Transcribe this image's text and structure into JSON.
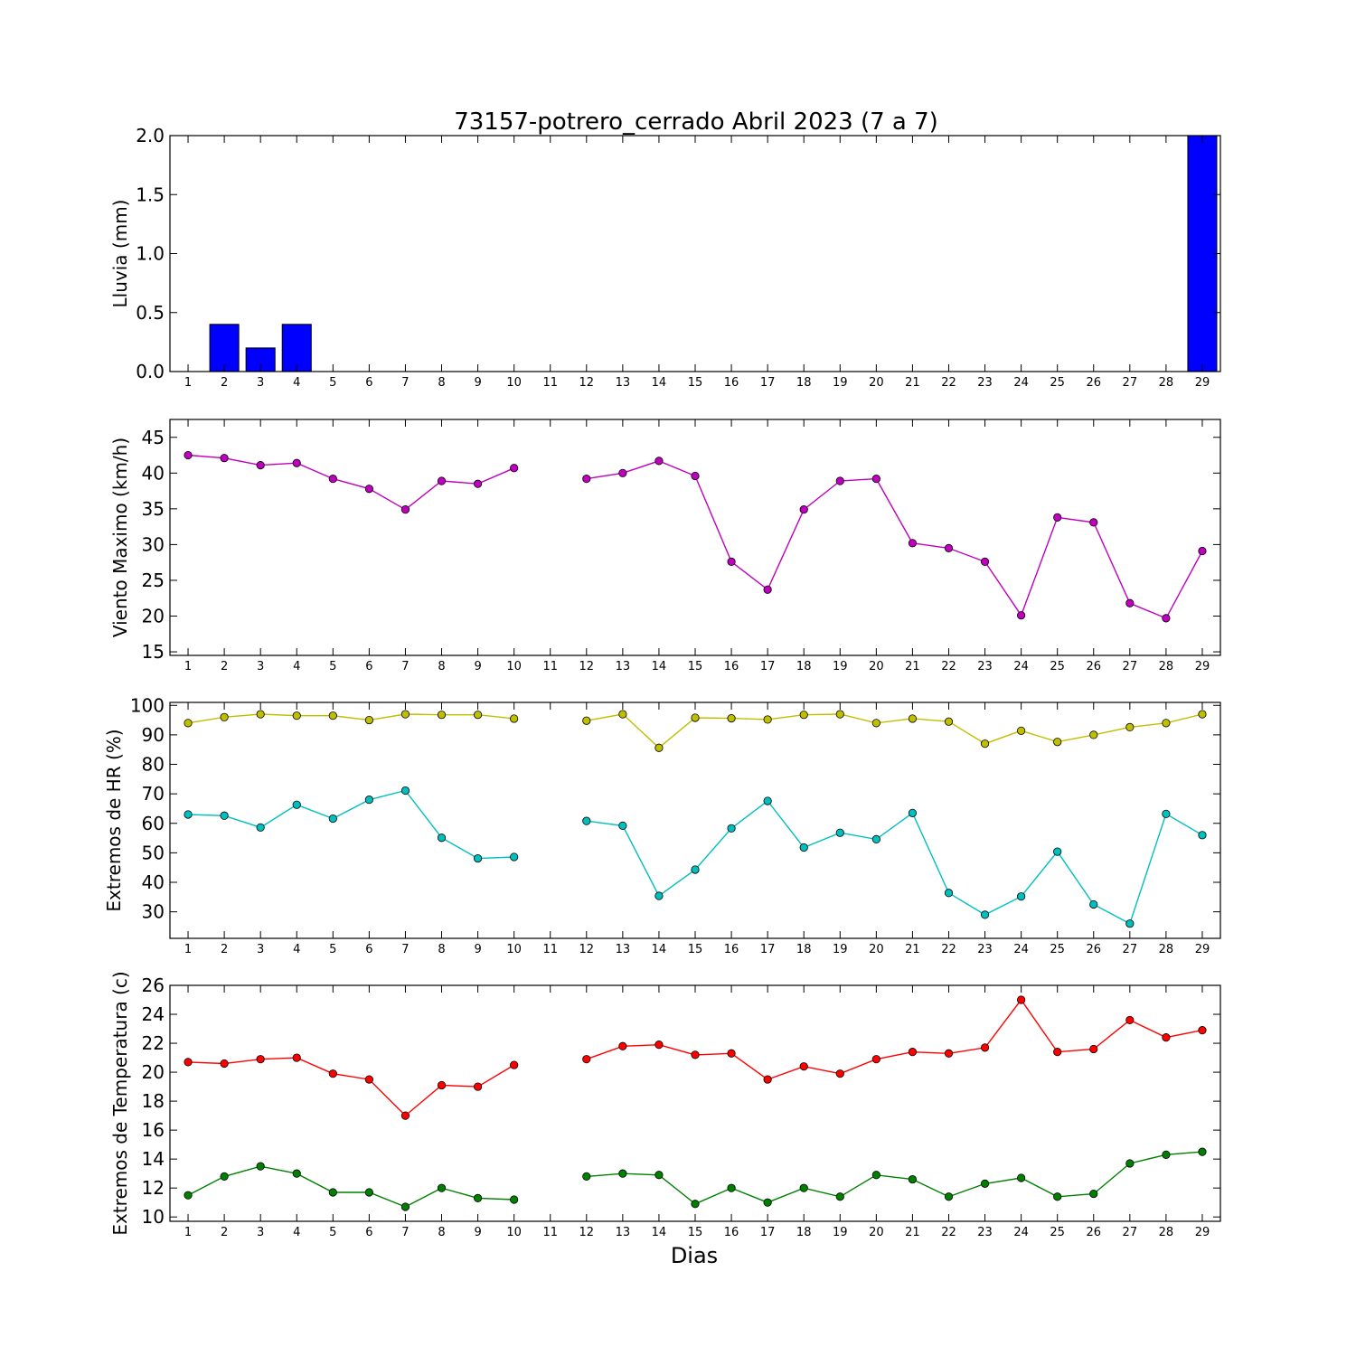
{
  "title": "73157-potrero_cerrado Abril 2023  (7 a 7)",
  "xlabel": "Dias",
  "chart_data": [
    {
      "type": "bar",
      "ylabel": "Lluvia (mm)",
      "ylim": [
        0,
        2.0
      ],
      "yticks": [
        0.0,
        0.5,
        1.0,
        1.5,
        2.0
      ],
      "ytick_format": "1",
      "x": [
        1,
        2,
        3,
        4,
        5,
        6,
        7,
        8,
        9,
        10,
        11,
        12,
        13,
        14,
        15,
        16,
        17,
        18,
        19,
        20,
        21,
        22,
        23,
        24,
        25,
        26,
        27,
        28,
        29
      ],
      "series": [
        {
          "color": "#0000ff",
          "values": [
            0,
            0.4,
            0.2,
            0.4,
            0,
            0,
            0,
            0,
            0,
            0,
            0,
            0,
            0,
            0,
            0,
            0,
            0,
            0,
            0,
            0,
            0,
            0,
            0,
            0,
            0,
            0,
            0,
            0,
            2.0
          ]
        }
      ]
    },
    {
      "type": "line",
      "ylabel": "Viento Maximo (km/h)",
      "ylim": [
        14.5,
        47.5
      ],
      "yticks": [
        15,
        20,
        25,
        30,
        35,
        40,
        45
      ],
      "ytick_format": "0",
      "x": [
        1,
        2,
        3,
        4,
        5,
        6,
        7,
        8,
        9,
        10,
        11,
        12,
        13,
        14,
        15,
        16,
        17,
        18,
        19,
        20,
        21,
        22,
        23,
        24,
        25,
        26,
        27,
        28,
        29
      ],
      "series": [
        {
          "color": "#bf00bf",
          "values": [
            42.5,
            42.1,
            41.1,
            41.4,
            39.2,
            37.8,
            34.9,
            38.9,
            38.5,
            40.7,
            null,
            39.2,
            40.0,
            41.7,
            39.6,
            27.6,
            23.7,
            34.9,
            38.9,
            39.2,
            30.2,
            29.5,
            27.6,
            20.1,
            33.8,
            33.1,
            21.8,
            19.7,
            29.1
          ]
        }
      ]
    },
    {
      "type": "line",
      "ylabel": "Extremos de HR (%)",
      "ylim": [
        21,
        101
      ],
      "yticks": [
        30,
        40,
        50,
        60,
        70,
        80,
        90,
        100
      ],
      "ytick_format": "0",
      "x": [
        1,
        2,
        3,
        4,
        5,
        6,
        7,
        8,
        9,
        10,
        11,
        12,
        13,
        14,
        15,
        16,
        17,
        18,
        19,
        20,
        21,
        22,
        23,
        24,
        25,
        26,
        27,
        28,
        29
      ],
      "series": [
        {
          "color": "#bfbf00",
          "values": [
            94,
            96,
            97,
            96.5,
            96.5,
            95,
            97,
            96.8,
            96.8,
            95.5,
            null,
            94.8,
            97,
            85.6,
            95.8,
            95.6,
            95.2,
            96.8,
            97,
            94,
            95.5,
            94.5,
            87,
            91.4,
            87.6,
            90,
            92.6,
            94,
            97
          ]
        },
        {
          "color": "#00bfbf",
          "values": [
            63,
            62.6,
            58.6,
            66.3,
            61.6,
            68,
            71.1,
            55.1,
            48.1,
            48.6,
            null,
            60.8,
            59.2,
            35.4,
            44.3,
            58.3,
            67.6,
            51.8,
            56.8,
            54.6,
            63.5,
            36.4,
            29,
            35.2,
            50.4,
            32.5,
            26,
            63.2,
            56
          ]
        }
      ]
    },
    {
      "type": "line",
      "ylabel": "Extremos de Temperatura (c)",
      "ylim": [
        9.7,
        26
      ],
      "yticks": [
        10,
        12,
        14,
        16,
        18,
        20,
        22,
        24,
        26
      ],
      "ytick_format": "0",
      "x": [
        1,
        2,
        3,
        4,
        5,
        6,
        7,
        8,
        9,
        10,
        11,
        12,
        13,
        14,
        15,
        16,
        17,
        18,
        19,
        20,
        21,
        22,
        23,
        24,
        25,
        26,
        27,
        28,
        29
      ],
      "series": [
        {
          "color": "#ff0000",
          "values": [
            20.7,
            20.6,
            20.9,
            21,
            19.9,
            19.5,
            17,
            19.1,
            19,
            20.5,
            null,
            20.9,
            21.8,
            21.9,
            21.2,
            21.3,
            19.5,
            20.4,
            19.9,
            20.9,
            21.4,
            21.3,
            21.7,
            25,
            21.4,
            21.6,
            23.6,
            22.4,
            22.9
          ]
        },
        {
          "color": "#008000",
          "values": [
            11.5,
            12.8,
            13.5,
            13,
            11.7,
            11.7,
            10.7,
            12,
            11.3,
            11.2,
            null,
            12.8,
            13,
            12.9,
            10.9,
            12,
            11,
            12,
            11.4,
            12.9,
            12.6,
            11.4,
            12.3,
            12.7,
            11.4,
            11.6,
            13.7,
            14.3,
            14.5
          ]
        }
      ]
    }
  ]
}
